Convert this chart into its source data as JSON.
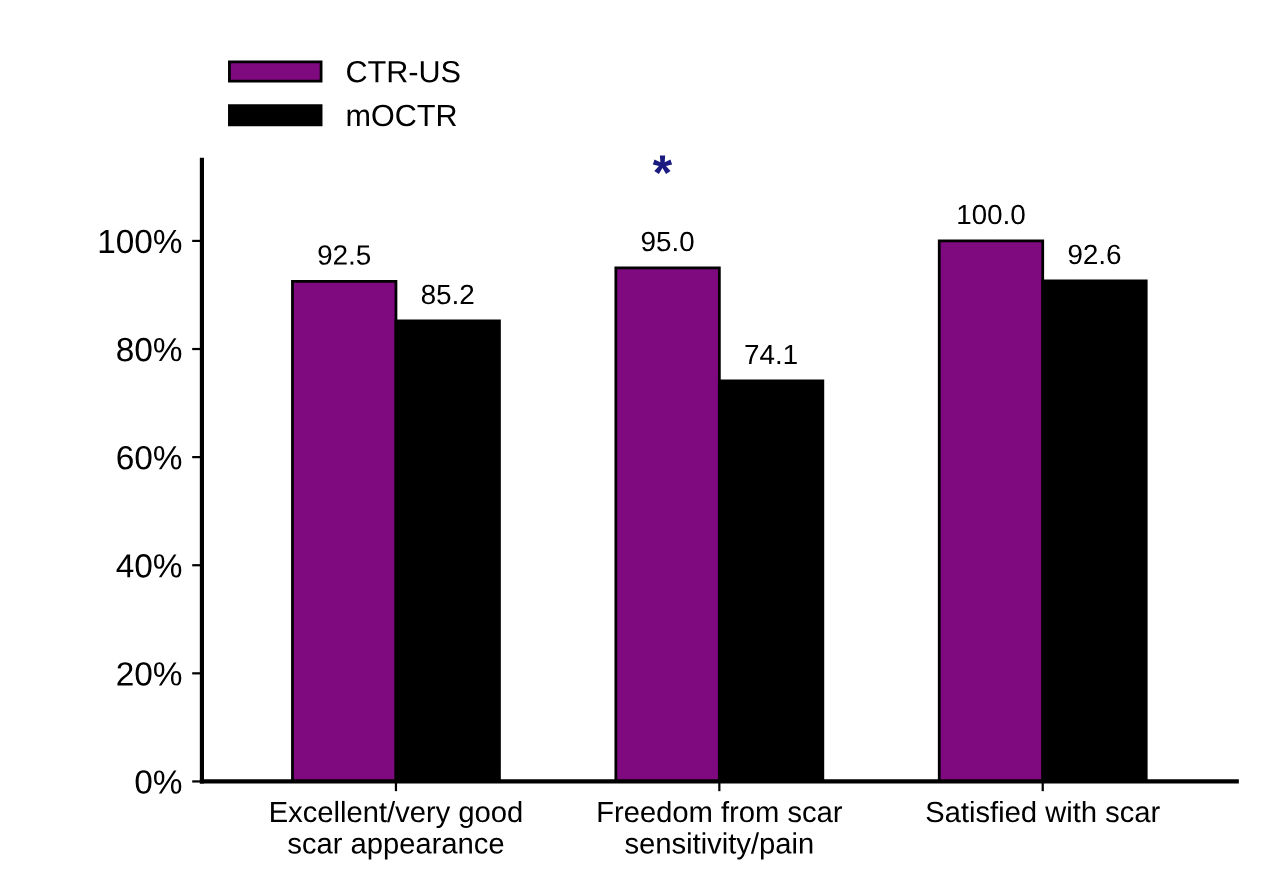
{
  "chart_data": {
    "type": "bar",
    "categories": [
      "Excellent/very good\nscar appearance",
      "Freedom from scar\nsensitivity/pain",
      "Satisfied with scar"
    ],
    "series": [
      {
        "name": "CTR-US",
        "color": "#7f0a7f",
        "values": [
          92.5,
          95.0,
          100.0
        ],
        "value_labels": [
          "92.5",
          "95.0",
          "100.0"
        ]
      },
      {
        "name": "mOCTR",
        "color": "#000000",
        "values": [
          85.2,
          74.1,
          92.6
        ],
        "value_labels": [
          "85.2",
          "74.1",
          "92.6"
        ]
      }
    ],
    "ylim": [
      0,
      115
    ],
    "yticks": [
      {
        "value": 0,
        "label": "0%"
      },
      {
        "value": 20,
        "label": "20%"
      },
      {
        "value": 40,
        "label": "40%"
      },
      {
        "value": 60,
        "label": "60%"
      },
      {
        "value": 80,
        "label": "80%"
      },
      {
        "value": 100,
        "label": "100%"
      }
    ],
    "annotations": [
      "*"
    ],
    "grid": false,
    "legend": "top left"
  }
}
